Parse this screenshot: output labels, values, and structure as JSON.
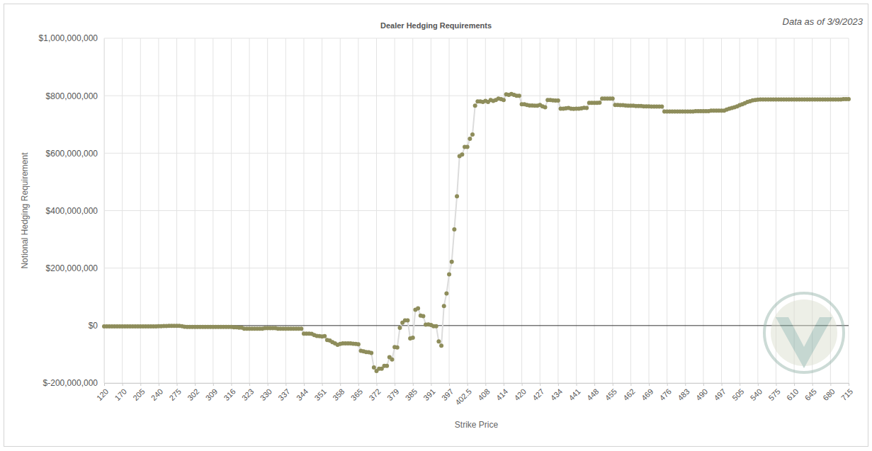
{
  "chart_data": {
    "type": "line",
    "title": "Dealer Hedging Requirements",
    "subtitle": "Data as of 3/9/2023",
    "x_label": "Strike Price",
    "y_label": "Notional Hedging Requirement",
    "color": "#8e8d5b",
    "marker": "circle",
    "grid": true,
    "ylim": [
      -200000000,
      1000000000
    ],
    "yticks": [
      {
        "value": -200000000,
        "label": "$-200,000,000"
      },
      {
        "value": 0,
        "label": "$0"
      },
      {
        "value": 200000000,
        "label": "$200,000,000"
      },
      {
        "value": 400000000,
        "label": "$400,000,000"
      },
      {
        "value": 600000000,
        "label": "$600,000,000"
      },
      {
        "value": 800000000,
        "label": "$800,000,000"
      },
      {
        "value": 1000000000,
        "label": "$1,000,000,000"
      }
    ],
    "categories": [
      "120",
      null,
      null,
      null,
      null,
      null,
      null,
      "170",
      null,
      null,
      null,
      null,
      null,
      null,
      "205",
      null,
      null,
      null,
      null,
      null,
      null,
      "240",
      null,
      null,
      null,
      null,
      null,
      null,
      "275",
      null,
      null,
      null,
      null,
      null,
      null,
      "302",
      null,
      null,
      null,
      null,
      null,
      null,
      "309",
      null,
      null,
      null,
      null,
      null,
      null,
      "316",
      null,
      null,
      null,
      null,
      null,
      null,
      "323",
      null,
      null,
      null,
      null,
      null,
      null,
      "330",
      null,
      null,
      null,
      null,
      null,
      null,
      "337",
      null,
      null,
      null,
      null,
      null,
      null,
      "344",
      null,
      null,
      null,
      null,
      null,
      null,
      "351",
      null,
      null,
      null,
      null,
      null,
      null,
      "358",
      null,
      null,
      null,
      null,
      null,
      null,
      "365",
      null,
      null,
      null,
      null,
      null,
      null,
      "372",
      null,
      null,
      null,
      null,
      null,
      null,
      "379",
      null,
      null,
      null,
      null,
      null,
      null,
      "385",
      null,
      null,
      null,
      null,
      null,
      null,
      "391",
      null,
      null,
      null,
      null,
      null,
      null,
      "397",
      null,
      null,
      null,
      null,
      null,
      null,
      "402.5",
      null,
      null,
      null,
      null,
      null,
      null,
      "408",
      null,
      null,
      null,
      null,
      null,
      null,
      "414",
      null,
      null,
      null,
      null,
      null,
      null,
      "420",
      null,
      null,
      null,
      null,
      null,
      null,
      "427",
      null,
      null,
      null,
      null,
      null,
      null,
      "434",
      null,
      null,
      null,
      null,
      null,
      null,
      "441",
      null,
      null,
      null,
      null,
      null,
      null,
      "448",
      null,
      null,
      null,
      null,
      null,
      null,
      "455",
      null,
      null,
      null,
      null,
      null,
      null,
      "462",
      null,
      null,
      null,
      null,
      null,
      null,
      "469",
      null,
      null,
      null,
      null,
      null,
      null,
      "476",
      null,
      null,
      null,
      null,
      null,
      null,
      "483",
      null,
      null,
      null,
      null,
      null,
      null,
      "490",
      null,
      null,
      null,
      null,
      null,
      null,
      "497",
      null,
      null,
      null,
      null,
      null,
      null,
      "505",
      null,
      null,
      null,
      null,
      null,
      null,
      "540",
      null,
      null,
      null,
      null,
      null,
      null,
      "575",
      null,
      null,
      null,
      null,
      null,
      null,
      "610",
      null,
      null,
      null,
      null,
      null,
      null,
      "645",
      null,
      null,
      null,
      null,
      null,
      null,
      "680",
      null,
      null,
      null,
      null,
      null,
      null,
      "715"
    ],
    "values": [
      -3000000,
      -3000000,
      -3000000,
      -3000000,
      -3000000,
      -3000000,
      -3000000,
      -3000000,
      -3000000,
      -3000000,
      -3000000,
      -3000000,
      -3000000,
      -3000000,
      -3000000,
      -3000000,
      -3000000,
      -3000000,
      -3000000,
      -3000000,
      -3000000,
      -2000000,
      -2000000,
      -1500000,
      -1500000,
      -1000000,
      -1000000,
      -1000000,
      -1000000,
      -1000000,
      -2000000,
      -4000000,
      -5000000,
      -5000000,
      -5000000,
      -5000000,
      -5000000,
      -5000000,
      -5000000,
      -5000000,
      -5000000,
      -5000000,
      -5000000,
      -5000000,
      -5000000,
      -5000000,
      -5000000,
      -5000000,
      -5000000,
      -5000000,
      -6000000,
      -6000000,
      -7000000,
      -7000000,
      -11000000,
      -11000000,
      -11000000,
      -11000000,
      -11000000,
      -11000000,
      -11000000,
      -11000000,
      -9000000,
      -9000000,
      -9000000,
      -9000000,
      -9000000,
      -11000000,
      -11000000,
      -11000000,
      -11000000,
      -11000000,
      -11000000,
      -11000000,
      -11000000,
      -11000000,
      -11000000,
      -28000000,
      -28000000,
      -28000000,
      -29000000,
      -33000000,
      -36000000,
      -37000000,
      -38000000,
      -37000000,
      -50000000,
      -52000000,
      -58000000,
      -62000000,
      -67000000,
      -64000000,
      -62000000,
      -62000000,
      -62000000,
      -62000000,
      -63000000,
      -64000000,
      -65000000,
      -88000000,
      -90000000,
      -92000000,
      -93000000,
      -95000000,
      -146000000,
      -158000000,
      -150000000,
      -150000000,
      -140000000,
      -140000000,
      -110000000,
      -118000000,
      -75000000,
      -76000000,
      -8000000,
      10000000,
      18000000,
      18000000,
      -45000000,
      -42000000,
      55000000,
      60000000,
      35000000,
      33000000,
      3000000,
      4000000,
      2000000,
      -2000000,
      -2000000,
      -55000000,
      -70000000,
      68000000,
      112000000,
      178000000,
      222000000,
      335000000,
      450000000,
      590000000,
      595000000,
      622000000,
      622000000,
      650000000,
      665000000,
      765000000,
      780000000,
      780000000,
      778000000,
      782000000,
      778000000,
      785000000,
      782000000,
      785000000,
      790000000,
      788000000,
      785000000,
      805000000,
      803000000,
      806000000,
      803000000,
      800000000,
      800000000,
      770000000,
      770000000,
      768000000,
      766000000,
      766000000,
      765000000,
      765000000,
      768000000,
      763000000,
      760000000,
      785000000,
      785000000,
      784000000,
      783000000,
      783000000,
      755000000,
      755000000,
      756000000,
      757000000,
      755000000,
      754000000,
      755000000,
      755000000,
      756000000,
      758000000,
      757000000,
      775000000,
      775000000,
      775000000,
      775000000,
      776000000,
      790000000,
      790000000,
      790000000,
      790000000,
      790000000,
      768000000,
      768000000,
      767000000,
      767000000,
      766000000,
      765000000,
      765000000,
      765000000,
      764000000,
      764000000,
      764000000,
      763000000,
      763000000,
      763000000,
      762000000,
      762000000,
      762000000,
      762000000,
      762000000,
      745000000,
      745000000,
      745000000,
      745000000,
      745000000,
      745000000,
      745000000,
      745000000,
      745000000,
      745000000,
      745000000,
      745000000,
      746000000,
      746000000,
      746000000,
      746000000,
      746000000,
      746000000,
      748000000,
      748000000,
      748000000,
      748000000,
      748000000,
      748000000,
      752000000,
      755000000,
      757000000,
      760000000,
      763000000,
      767000000,
      770000000,
      774000000,
      778000000,
      781000000,
      784000000,
      785000000,
      786000000,
      787000000,
      787000000,
      787000000,
      787000000,
      787000000,
      787000000,
      787000000,
      787000000,
      787000000,
      787000000,
      787000000,
      787000000,
      787000000,
      787000000,
      787000000,
      787000000,
      787000000,
      787000000,
      787000000,
      787000000,
      787000000,
      787000000,
      787000000,
      787000000,
      787000000,
      787000000,
      787000000,
      787000000,
      787000000,
      787000000,
      787000000,
      787000000,
      788000000,
      788000000,
      788000000
    ]
  }
}
